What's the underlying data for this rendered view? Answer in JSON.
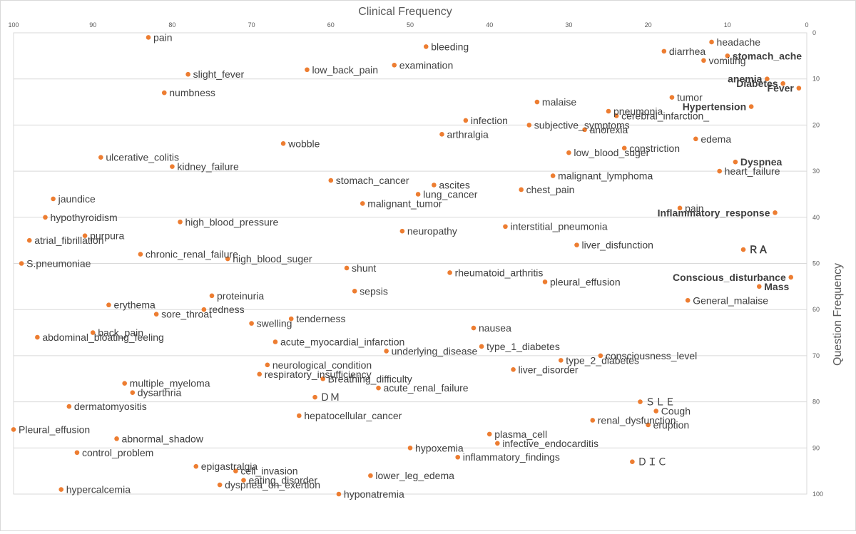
{
  "chart_data": {
    "type": "scatter",
    "title": "Clinical Frequency",
    "xlabel": "",
    "ylabel": "Question Frequency",
    "xlim": [
      100,
      0
    ],
    "ylim": [
      0,
      100
    ],
    "x_reversed": true,
    "y_inverted": true,
    "x_ticks": [
      "100",
      "90",
      "80",
      "70",
      "60",
      "50",
      "40",
      "30",
      "20",
      "10",
      "0"
    ],
    "y_ticks": [
      "0",
      "10",
      "20",
      "30",
      "40",
      "50",
      "60",
      "70",
      "80",
      "90",
      "100"
    ],
    "grid": true,
    "marker_color": "#ED7D31",
    "points": [
      {
        "label": "pain",
        "x": 83,
        "y": 1
      },
      {
        "label": "bleeding",
        "x": 48,
        "y": 3
      },
      {
        "label": "headache",
        "x": 12,
        "y": 2
      },
      {
        "label": "diarrhea",
        "x": 18,
        "y": 4
      },
      {
        "label": "stomach_ache",
        "x": 10,
        "y": 5,
        "bold": true
      },
      {
        "label": "vomiting",
        "x": 13,
        "y": 6
      },
      {
        "label": "examination",
        "x": 52,
        "y": 7
      },
      {
        "label": "slight_fever",
        "x": 78,
        "y": 9
      },
      {
        "label": "low_back_pain",
        "x": 63,
        "y": 8
      },
      {
        "label": "anemia",
        "x": 5,
        "y": 10,
        "bold": true
      },
      {
        "label": "Diabetes",
        "x": 3,
        "y": 11,
        "bold": true
      },
      {
        "label": "Fever",
        "x": 1,
        "y": 12,
        "bold": true
      },
      {
        "label": "numbness",
        "x": 81,
        "y": 13
      },
      {
        "label": "tumor",
        "x": 17,
        "y": 14
      },
      {
        "label": "malaise",
        "x": 34,
        "y": 15
      },
      {
        "label": "pneumonia",
        "x": 25,
        "y": 17
      },
      {
        "label": "cerebral_infarction_",
        "x": 24,
        "y": 18
      },
      {
        "label": "Hypertension",
        "x": 7,
        "y": 16,
        "bold": true
      },
      {
        "label": "infection",
        "x": 43,
        "y": 19
      },
      {
        "label": "subjective_symptoms",
        "x": 35,
        "y": 20
      },
      {
        "label": "arthralgia",
        "x": 46,
        "y": 22
      },
      {
        "label": "anorexia",
        "x": 28,
        "y": 21
      },
      {
        "label": "edema",
        "x": 14,
        "y": 23
      },
      {
        "label": "wobble",
        "x": 66,
        "y": 24
      },
      {
        "label": "constriction",
        "x": 23,
        "y": 25
      },
      {
        "label": "low_blood_suger",
        "x": 30,
        "y": 26
      },
      {
        "label": "ulcerative_colitis",
        "x": 89,
        "y": 27
      },
      {
        "label": "kidney_failure",
        "x": 80,
        "y": 29
      },
      {
        "label": "Dyspnea",
        "x": 9,
        "y": 28,
        "bold": true
      },
      {
        "label": "heart_failure",
        "x": 11,
        "y": 30
      },
      {
        "label": "malignant_lymphoma",
        "x": 32,
        "y": 31
      },
      {
        "label": "stomach_cancer",
        "x": 60,
        "y": 32
      },
      {
        "label": "ascites",
        "x": 47,
        "y": 33
      },
      {
        "label": "chest_pain",
        "x": 36,
        "y": 34
      },
      {
        "label": "lung_cancer",
        "x": 49,
        "y": 35
      },
      {
        "label": "jaundice",
        "x": 95,
        "y": 36
      },
      {
        "label": "malignant_tumor",
        "x": 56,
        "y": 37
      },
      {
        "label": "pain",
        "x": 16,
        "y": 38
      },
      {
        "label": "Inflammatory_response",
        "x": 4,
        "y": 39,
        "bold": true
      },
      {
        "label": "hypothyroidism",
        "x": 96,
        "y": 40
      },
      {
        "label": "high_blood_pressure",
        "x": 79,
        "y": 41
      },
      {
        "label": "interstitial_pneumonia",
        "x": 38,
        "y": 42
      },
      {
        "label": "neuropathy",
        "x": 51,
        "y": 43
      },
      {
        "label": "purpura",
        "x": 91,
        "y": 44
      },
      {
        "label": "atrial_fibrillation",
        "x": 98,
        "y": 45
      },
      {
        "label": "liver_disfunction",
        "x": 29,
        "y": 46
      },
      {
        "label": "ＲＡ",
        "x": 8,
        "y": 47,
        "bold": true
      },
      {
        "label": "chronic_renal_failure",
        "x": 84,
        "y": 48
      },
      {
        "label": "high_blood_suger",
        "x": 73,
        "y": 49
      },
      {
        "label": "S.pneumoniae",
        "x": 99,
        "y": 50
      },
      {
        "label": "shunt",
        "x": 58,
        "y": 51
      },
      {
        "label": "rheumatoid_arthritis",
        "x": 45,
        "y": 52
      },
      {
        "label": "Conscious_disturbance",
        "x": 2,
        "y": 53,
        "bold": true
      },
      {
        "label": "pleural_effusion",
        "x": 33,
        "y": 54
      },
      {
        "label": "Mass",
        "x": 6,
        "y": 55,
        "bold": true
      },
      {
        "label": "sepsis",
        "x": 57,
        "y": 56
      },
      {
        "label": "proteinuria",
        "x": 75,
        "y": 57
      },
      {
        "label": "General_malaise",
        "x": 15,
        "y": 58
      },
      {
        "label": "erythema",
        "x": 88,
        "y": 59
      },
      {
        "label": "redness",
        "x": 76,
        "y": 60
      },
      {
        "label": "sore_throat",
        "x": 82,
        "y": 61
      },
      {
        "label": "tenderness",
        "x": 65,
        "y": 62
      },
      {
        "label": "swelling",
        "x": 70,
        "y": 63
      },
      {
        "label": "nausea",
        "x": 42,
        "y": 64
      },
      {
        "label": "back_pain",
        "x": 90,
        "y": 65
      },
      {
        "label": "abdominal_bloating_feeling",
        "x": 97,
        "y": 66
      },
      {
        "label": "acute_myocardial_infarction",
        "x": 67,
        "y": 67
      },
      {
        "label": "type_1_diabetes",
        "x": 41,
        "y": 68
      },
      {
        "label": "underlying_disease",
        "x": 53,
        "y": 69
      },
      {
        "label": "consciousness_level",
        "x": 26,
        "y": 70
      },
      {
        "label": "type_2_diabetes",
        "x": 31,
        "y": 71
      },
      {
        "label": "neurological_condition",
        "x": 68,
        "y": 72
      },
      {
        "label": "liver_disorder",
        "x": 37,
        "y": 73
      },
      {
        "label": "respiratory_insufficiency",
        "x": 69,
        "y": 74
      },
      {
        "label": "Breathing_difficulty",
        "x": 61,
        "y": 75
      },
      {
        "label": "multiple_myeloma",
        "x": 86,
        "y": 76
      },
      {
        "label": "acute_renal_failure",
        "x": 54,
        "y": 77
      },
      {
        "label": "dysarthria",
        "x": 85,
        "y": 78
      },
      {
        "label": "ＤＭ",
        "x": 62,
        "y": 79
      },
      {
        "label": "ＳＬＥ",
        "x": 21,
        "y": 80
      },
      {
        "label": "dermatomyositis",
        "x": 93,
        "y": 81
      },
      {
        "label": "Cough",
        "x": 19,
        "y": 82
      },
      {
        "label": "hepatocellular_cancer",
        "x": 64,
        "y": 83
      },
      {
        "label": "renal_dysfunction",
        "x": 27,
        "y": 84
      },
      {
        "label": "eruption",
        "x": 20,
        "y": 85
      },
      {
        "label": "Pleural_effusion",
        "x": 100,
        "y": 86
      },
      {
        "label": "plasma_cell",
        "x": 40,
        "y": 87
      },
      {
        "label": "abnormal_shadow",
        "x": 87,
        "y": 88
      },
      {
        "label": "infective_endocarditis",
        "x": 39,
        "y": 89
      },
      {
        "label": "hypoxemia",
        "x": 50,
        "y": 90
      },
      {
        "label": "control_problem",
        "x": 92,
        "y": 91
      },
      {
        "label": "inflammatory_findings",
        "x": 44,
        "y": 92
      },
      {
        "label": "ＤＩＣ",
        "x": 22,
        "y": 93
      },
      {
        "label": "epigastralgia",
        "x": 77,
        "y": 94
      },
      {
        "label": "cell_invasion",
        "x": 72,
        "y": 95
      },
      {
        "label": "lower_leg_edema",
        "x": 55,
        "y": 96
      },
      {
        "label": "eating_disorder",
        "x": 71,
        "y": 97
      },
      {
        "label": "dyspnea_on_exertion",
        "x": 74,
        "y": 98
      },
      {
        "label": "hypercalcemia",
        "x": 94,
        "y": 99
      },
      {
        "label": "hyponatremia",
        "x": 59,
        "y": 100
      }
    ]
  }
}
